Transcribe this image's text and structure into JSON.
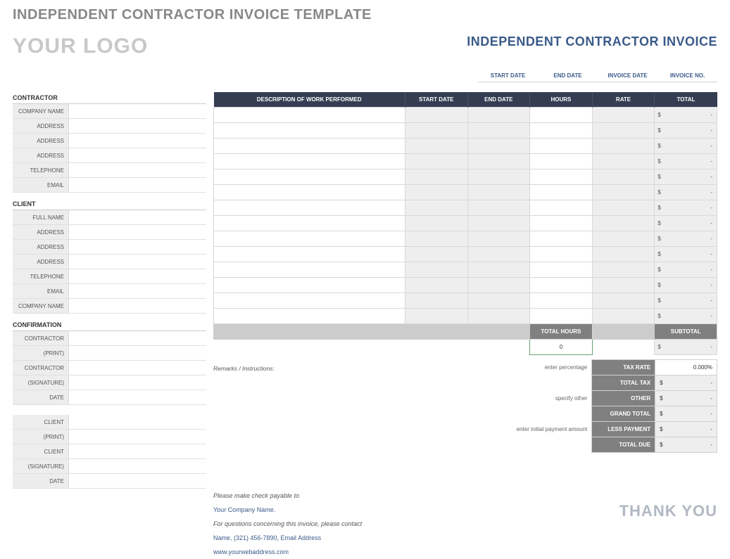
{
  "page_title": "INDEPENDENT CONTRACTOR INVOICE TEMPLATE",
  "logo": "YOUR LOGO",
  "invoice_title": "INDEPENDENT CONTRACTOR INVOICE",
  "meta": {
    "start_date": "START DATE",
    "end_date": "END DATE",
    "invoice_date": "INVOICE DATE",
    "invoice_no": "INVOICE NO."
  },
  "sections": {
    "contractor": "CONTRACTOR",
    "client": "CLIENT",
    "confirmation": "CONFIRMATION"
  },
  "contractor_fields": [
    "COMPANY NAME",
    "ADDRESS",
    "ADDRESS",
    "ADDRESS",
    "TELEPHONE",
    "EMAIL"
  ],
  "client_fields": [
    "FULL NAME",
    "ADDRESS",
    "ADDRESS",
    "ADDRESS",
    "TELEPHONE",
    "EMAIL",
    "COMPANY NAME"
  ],
  "confirmation_fields": [
    "CONTRACTOR",
    "(PRINT)",
    "CONTRACTOR",
    "(SIGNATURE)",
    "DATE"
  ],
  "footer_conf_fields": [
    "CLIENT",
    "(PRINT)",
    "CLIENT",
    "(SIGNATURE)",
    "DATE"
  ],
  "work_headers": {
    "description": "DESCRIPTION OF WORK PERFORMED",
    "start": "START DATE",
    "end": "END DATE",
    "hours": "HOURS",
    "rate": "RATE",
    "total": "TOTAL"
  },
  "row_count": 14,
  "currency": "$",
  "dash": "-",
  "summary": {
    "total_hours_label": "TOTAL HOURS",
    "subtotal_label": "SUBTOTAL",
    "total_hours_value": "0"
  },
  "remarks_label": "Remarks / Instructions:",
  "totals": {
    "rows": [
      {
        "hint": "enter percentage",
        "label": "TAX RATE",
        "value": "0.000%",
        "plain": true
      },
      {
        "hint": "",
        "label": "TOTAL TAX",
        "value": "$",
        "plain": false
      },
      {
        "hint": "specify other",
        "label": "OTHER",
        "value": "$",
        "plain": false
      },
      {
        "hint": "",
        "label": "GRAND TOTAL",
        "value": "$",
        "plain": false
      },
      {
        "hint": "enter initial payment amount",
        "label": "LESS PAYMENT",
        "value": "$",
        "plain": false
      },
      {
        "hint": "",
        "label": "TOTAL DUE",
        "value": "$",
        "plain": false
      }
    ]
  },
  "footer": {
    "l1": "Please make check payable to",
    "l2": "Your Company Name.",
    "l3": "For questions concerning this invoice, please contact",
    "l4": "Name, (321) 456-7890, Email Address",
    "l5": "www.yourwebaddress.com"
  },
  "thankyou": "THANK YOU",
  "colors": {
    "header_bg": "#353d52",
    "gray_bg": "#808080",
    "light_gray": "#eeeeee",
    "blue_text": "#3a5a8a",
    "logo_gray": "#c8c8c8"
  }
}
